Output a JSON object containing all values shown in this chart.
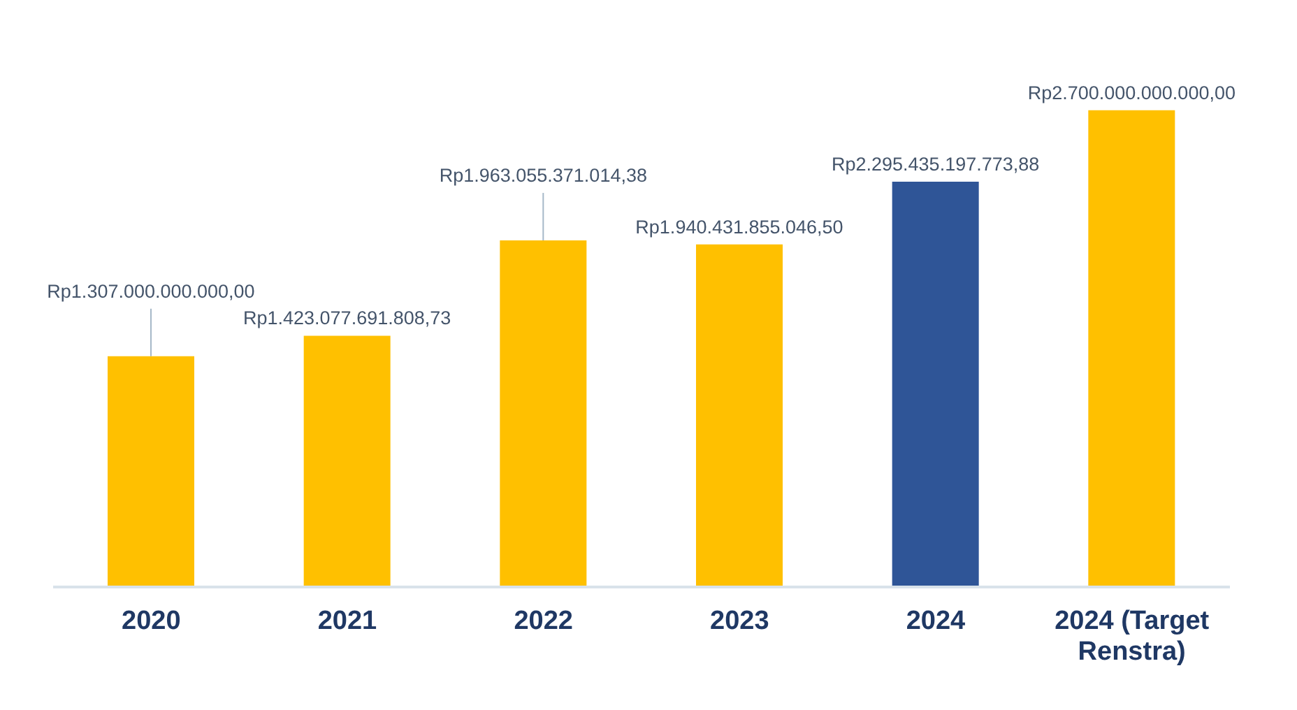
{
  "chart_data": {
    "type": "bar",
    "categories": [
      "2020",
      "2021",
      "2022",
      "2023",
      "2024",
      "2024 (Target Renstra)"
    ],
    "values": [
      1307000000000.0,
      1423077691808.73,
      1963055371014.38,
      1940431855046.5,
      2295435197773.88,
      2700000000000.0
    ],
    "colors": [
      "#ffc000",
      "#ffc000",
      "#ffc000",
      "#ffc000",
      "#2f5597",
      "#ffc000"
    ],
    "value_labels": [
      "Rp1.307.000.000.000,00",
      "Rp1.423.077.691.808,73",
      "Rp1.963.055.371.014,38",
      "Rp1.940.431.855.046,50",
      "Rp2.295.435.197.773,88",
      "Rp2.700.000.000.000,00"
    ]
  }
}
